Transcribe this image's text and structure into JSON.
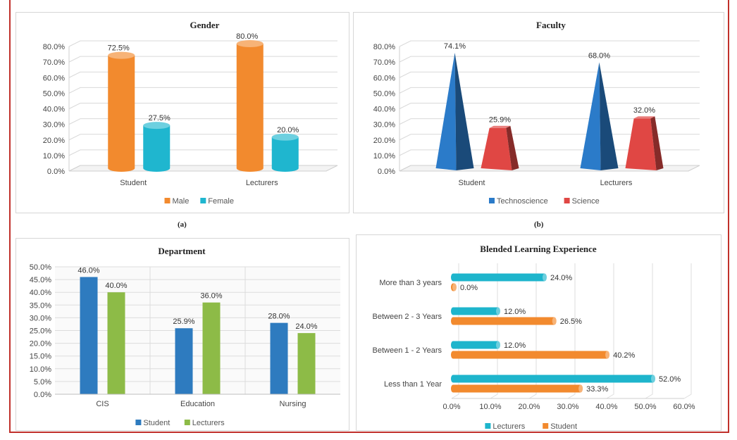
{
  "captions": {
    "a": "(a)",
    "b": "(b)"
  },
  "colors": {
    "male": "#f28a2e",
    "female": "#1fb6cf",
    "technoscience": "#2b7bc9",
    "science": "#e04744",
    "student_bar": "#2e7bbf",
    "lecturers_bar": "#8dbb47",
    "bl_lecturers": "#1eb5cc",
    "bl_student": "#f28a2e"
  },
  "chart_data": [
    {
      "id": "gender",
      "type": "bar",
      "style": "3d-cylinder",
      "title": "Gender",
      "categories": [
        "Student",
        "Lecturers"
      ],
      "series": [
        {
          "name": "Male",
          "values": [
            72.5,
            80.0
          ],
          "labels": [
            "72.5%",
            "80.0%"
          ]
        },
        {
          "name": "Female",
          "values": [
            27.5,
            20.0
          ],
          "labels": [
            "27.5%",
            "20.0%"
          ]
        }
      ],
      "yticks": [
        "0.0%",
        "10.0%",
        "20.0%",
        "30.0%",
        "40.0%",
        "50.0%",
        "60.0%",
        "70.0%",
        "80.0%"
      ],
      "ylim": [
        0,
        80
      ],
      "legend": "bottom",
      "grid": true
    },
    {
      "id": "faculty",
      "type": "bar",
      "style": "3d-pyramid",
      "title": "Faculty",
      "categories": [
        "Student",
        "Lecturers"
      ],
      "series": [
        {
          "name": "Technoscience",
          "values": [
            74.1,
            68.0
          ],
          "labels": [
            "74.1%",
            "68.0%"
          ]
        },
        {
          "name": "Science",
          "values": [
            25.9,
            32.0
          ],
          "labels": [
            "25.9%",
            "32.0%"
          ]
        }
      ],
      "yticks": [
        "0.0%",
        "10.0%",
        "20.0%",
        "30.0%",
        "40.0%",
        "50.0%",
        "60.0%",
        "70.0%",
        "80.0%"
      ],
      "ylim": [
        0,
        80
      ],
      "legend": "bottom",
      "grid": true
    },
    {
      "id": "department",
      "type": "bar",
      "title": "Department",
      "categories": [
        "CIS",
        "Education",
        "Nursing"
      ],
      "series": [
        {
          "name": "Student",
          "values": [
            46.0,
            25.9,
            28.0
          ],
          "labels": [
            "46.0%",
            "25.9%",
            "28.0%"
          ]
        },
        {
          "name": "Lecturers",
          "values": [
            40.0,
            36.0,
            24.0
          ],
          "labels": [
            "40.0%",
            "36.0%",
            "24.0%"
          ]
        }
      ],
      "yticks": [
        "0.0%",
        "5.0%",
        "10.0%",
        "15.0%",
        "20.0%",
        "25.0%",
        "30.0%",
        "35.0%",
        "40.0%",
        "45.0%",
        "50.0%"
      ],
      "ylim": [
        0,
        50
      ],
      "legend": "bottom",
      "grid": true
    },
    {
      "id": "blended",
      "type": "bar",
      "orientation": "horizontal",
      "style": "3d-cylinder",
      "title": "Blended Learning Experience",
      "categories": [
        "More than 3 years",
        "Between 2 - 3 Years",
        "Between 1 - 2 Years",
        "Less than 1 Year"
      ],
      "series": [
        {
          "name": "Lecturers",
          "values": [
            24.0,
            12.0,
            12.0,
            52.0
          ],
          "labels": [
            "24.0%",
            "12.0%",
            "12.0%",
            "52.0%"
          ]
        },
        {
          "name": "Student",
          "values": [
            0.0,
            26.5,
            40.2,
            33.3
          ],
          "labels": [
            "0.0%",
            "26.5%",
            "40.2%",
            "33.3%"
          ]
        }
      ],
      "xticks": [
        "0.0%",
        "10.0%",
        "20.0%",
        "30.0%",
        "40.0%",
        "50.0%",
        "60.0%"
      ],
      "xlim": [
        0,
        60
      ],
      "legend": "bottom",
      "grid": true
    }
  ]
}
